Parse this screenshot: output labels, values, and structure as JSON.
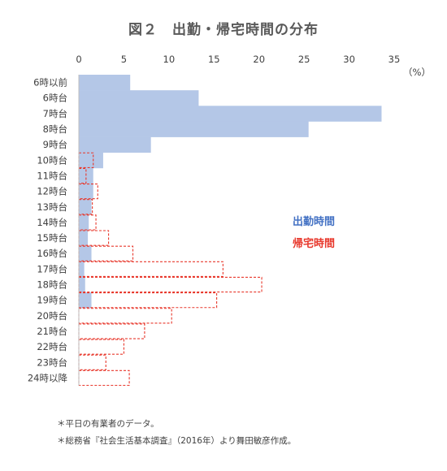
{
  "chart_data": {
    "type": "bar",
    "title": "図２　出勤・帰宅時間の分布",
    "unit_label": "（%）",
    "xlim": [
      0,
      35
    ],
    "x_ticks": [
      "0",
      "5",
      "10",
      "15",
      "20",
      "25",
      "30",
      "35"
    ],
    "categories": [
      "6時以前",
      "6時台",
      "7時台",
      "8時台",
      "9時台",
      "10時台",
      "11時台",
      "12時台",
      "13時台",
      "14時台",
      "15時台",
      "16時台",
      "17時台",
      "18時台",
      "19時台",
      "20時台",
      "21時台",
      "22時台",
      "23時台",
      "24時以降"
    ],
    "series": [
      {
        "name": "出勤時間",
        "color": "#b4c7e7",
        "style": "filled",
        "values": [
          5.7,
          13.3,
          33.6,
          25.5,
          8.0,
          2.7,
          1.6,
          1.6,
          1.4,
          1.1,
          1.0,
          1.4,
          0.6,
          0.7,
          1.4,
          0,
          0,
          0,
          0,
          0
        ]
      },
      {
        "name": "帰宅時間",
        "color": "#e8382c",
        "style": "dashed-outline",
        "values": [
          0,
          0,
          0,
          0,
          0,
          1.6,
          0.8,
          2.1,
          1.5,
          1.9,
          3.3,
          6.0,
          16.0,
          20.3,
          15.3,
          10.3,
          7.3,
          5.0,
          3.0,
          5.6
        ]
      }
    ],
    "legend_placement": "right-middle"
  },
  "notes": [
    "＊平日の有業者のデータ。",
    "＊総務省『社会生活基本調査』（2016年）より舞田敏彦作成。"
  ]
}
